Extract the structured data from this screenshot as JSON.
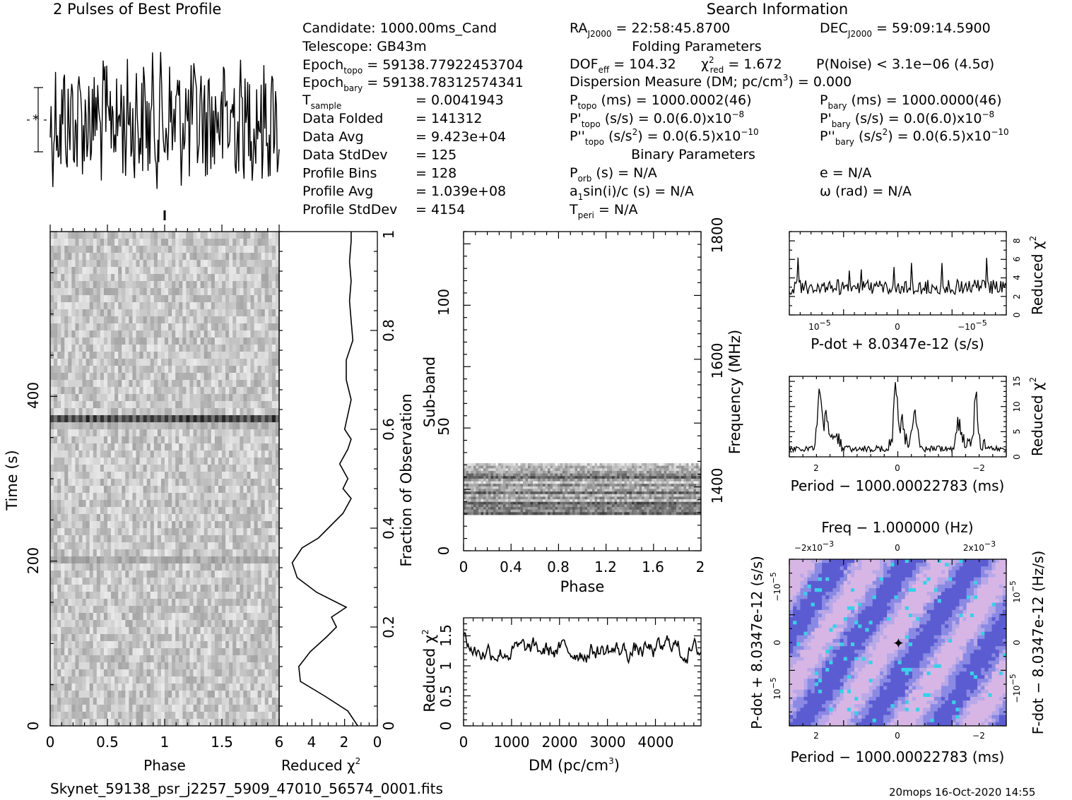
{
  "chart_data": {
    "type": "line",
    "file_name": "Skynet_59138_psr_j2257_5909_47010_56574_0001.fits",
    "footer_right": "20mops 16-Oct-2020 14:55",
    "profile": {
      "title": "2 Pulses of Best Profile"
    },
    "info": {
      "candidate": "Candidate:  1000.00ms_Cand",
      "telescope": "Telescope:  GB43m",
      "epoch_topo_label": "Epoch",
      "epoch_topo_sub": "topo",
      "epoch_topo_value": " = 59138.77922453704",
      "epoch_bary_label": "Epoch",
      "epoch_bary_sub": "bary",
      "epoch_bary_value": " = 59138.78312574341",
      "tsample_label": "T",
      "tsample_sub": "sample",
      "tsample_value": "=   0.0041943",
      "rows": [
        {
          "label": "Data Folded",
          "value": "=   141312"
        },
        {
          "label": "Data Avg",
          "value": "=   9.423e+04"
        },
        {
          "label": "Data StdDev",
          "value": "=   125"
        },
        {
          "label": "Profile Bins",
          "value": "=   128"
        },
        {
          "label": "Profile Avg",
          "value": "=   1.039e+08"
        },
        {
          "label": "Profile StdDev",
          "value": "=   4154"
        }
      ],
      "search_header": "Search Information",
      "ra_label": "RA",
      "ra_sub": "J2000",
      "ra_value": " = 22:58:45.8700",
      "dec_label": "DEC",
      "dec_sub": "J2000",
      "dec_value": " = 59:09:14.5900",
      "folding_header": "Folding Parameters",
      "dof_label": "DOF",
      "dof_sub": "eff",
      "dof_value": " = 104.32",
      "chi_label": "χ",
      "chi_sup": "2",
      "chi_sub": "red",
      "chi_value": " = 1.672",
      "pnoise": "P(Noise) < 3.1e−06   (4.5σ)",
      "dm_line_a": "Dispersion Measure (DM; pc/cm",
      "dm_line_sup": "3",
      "dm_line_b": ") = 0.000",
      "p_topo_label": "P",
      "p_topo_sub": "topo",
      "p_topo_value": " (ms) =  1000.0002(46)",
      "p_bary_label": "P",
      "p_bary_sub": "bary",
      "p_bary_value": " (ms) =  1000.0000(46)",
      "pd_topo_label": "P'",
      "pd_topo_sub": "topo",
      "pd_topo_value": " (s/s) = 0.0(6.0)x10",
      "pd_topo_exp": "−8",
      "pd_bary_label": "P'",
      "pd_bary_sub": "bary",
      "pd_bary_value": " (s/s) = 0.0(6.0)x10",
      "pd_bary_exp": "−8",
      "pdd_topo_label": "P''",
      "pdd_topo_sub": "topo",
      "pdd_topo_value_a": " (s/s",
      "pdd_topo_value_sup": "2",
      "pdd_topo_value_b": ") = 0.0(6.5)x10",
      "pdd_topo_exp": "−10",
      "pdd_bary_label": "P''",
      "pdd_bary_sub": "bary",
      "pdd_bary_value_a": " (s/s",
      "pdd_bary_value_sup": "2",
      "pdd_bary_value_b": ") = 0.0(6.5)x10",
      "pdd_bary_exp": "−10",
      "binary_header": "Binary Parameters",
      "porb_label": "P",
      "porb_sub": "orb",
      "porb_value": " (s) = N/A",
      "e_value": "e = N/A",
      "a1_label": "a",
      "a1_sub": "1",
      "a1_value": "sin(i)/c (s) = N/A",
      "omega_value": "ω (rad) = N/A",
      "tperi_label": "T",
      "tperi_sub": "peri",
      "tperi_value": " = N/A"
    },
    "time_phase": {
      "xlabel": "Phase",
      "ylabel": "Time (s)",
      "x_ticks": [
        "0",
        "0.5",
        "1",
        "1.5"
      ],
      "y_ticks": [
        "0",
        "200",
        "400"
      ]
    },
    "redchi_time": {
      "xlabel_a": "Reduced ",
      "xlabel_chi": "χ",
      "xlabel_sup": "2",
      "x_ticks": [
        "6",
        "4",
        "2",
        "0"
      ],
      "right_label": "Fraction of Observation",
      "right_ticks": [
        "0",
        "0.2",
        "0.4",
        "0.6",
        "0.8",
        "1"
      ],
      "frac": [
        0.0,
        0.03,
        0.06,
        0.09,
        0.12,
        0.15,
        0.18,
        0.2,
        0.22,
        0.24,
        0.27,
        0.3,
        0.33,
        0.36,
        0.38,
        0.4,
        0.43,
        0.46,
        0.48,
        0.5,
        0.53,
        0.56,
        0.58,
        0.6,
        0.63,
        0.66,
        0.7,
        0.74,
        0.78,
        0.82,
        0.86,
        0.9,
        0.94,
        0.98,
        1.0
      ],
      "chi": [
        1.2,
        1.8,
        3.2,
        4.7,
        4.8,
        4.1,
        3.1,
        2.5,
        2.8,
        1.9,
        3.7,
        4.9,
        5.2,
        4.6,
        3.6,
        3.0,
        2.1,
        1.6,
        2.1,
        1.8,
        2.3,
        1.8,
        1.6,
        2.0,
        1.8,
        1.6,
        1.9,
        1.9,
        1.5,
        1.6,
        1.7,
        1.6,
        1.7,
        1.6,
        1.6
      ]
    },
    "subband": {
      "xlabel": "Phase",
      "ylabel": "Sub-band",
      "x_ticks": [
        "0",
        "0.4",
        "0.8",
        "1.2",
        "1.6",
        "2"
      ],
      "y_ticks": [
        "0",
        "50",
        "100"
      ],
      "right_label": "Frequency (MHz)",
      "right_ticks": [
        "1400",
        "1600",
        "1800"
      ]
    },
    "dm_chi": {
      "xlabel_a": "DM (pc/cm",
      "xlabel_sup": "3",
      "xlabel_b": ")",
      "ylabel_a": "Reduced ",
      "ylabel_chi": "χ",
      "ylabel_sup": "2",
      "x_ticks": [
        "0",
        "1000",
        "2000",
        "3000",
        "4000"
      ],
      "y_ticks": [
        "0",
        "0.5",
        "1",
        "1.5"
      ],
      "x_range": [
        0,
        4950
      ],
      "y_range": [
        0,
        1.8
      ]
    },
    "pdot_chi": {
      "xlabel": "P-dot + 8.0347e-12 (s/s)",
      "ylabel_a": "Reduced ",
      "ylabel_chi": "χ",
      "ylabel_sup": "2",
      "x_tick_neg": "10",
      "x_tick_neg_exp": "−5",
      "x_tick_zero": "0",
      "x_tick_pos": "−10",
      "x_tick_pos_exp": "−5",
      "y_ticks": [
        "0",
        "2",
        "4",
        "6",
        "8"
      ],
      "y_range": [
        0,
        9
      ]
    },
    "period_chi": {
      "xlabel": "Period − 1000.00022783 (ms)",
      "ylabel_a": "Reduced ",
      "ylabel_chi": "χ",
      "ylabel_sup": "2",
      "x_ticks": [
        "2",
        "0",
        "−2"
      ],
      "y_ticks": [
        "0",
        "5",
        "10",
        "15"
      ],
      "y_range": [
        0,
        16
      ]
    },
    "ppdot": {
      "top_label": "Freq − 1.000000 (Hz)",
      "top_tick_left": "−2x10",
      "top_tick_left_exp": "−3",
      "top_tick_mid": "0",
      "top_tick_right": "2x10",
      "top_tick_right_exp": "−3",
      "xlabel": "Period − 1000.00022783 (ms)",
      "x_ticks": [
        "2",
        "0",
        "−2"
      ],
      "ylabel": "P-dot + 8.0347e-12 (s/s)",
      "right_label": "F-dot − 8.0347e-12 (Hz/s)",
      "y_tick_top": "−10",
      "y_tick_top_exp": "−5",
      "y_tick_mid": "0",
      "y_tick_bot": "10",
      "y_tick_bot_exp": "−5",
      "colors": [
        "#5c5cd2",
        "#8a8ae4",
        "#b8a8e8",
        "#d7b6e6",
        "#3ad0e8"
      ]
    }
  }
}
